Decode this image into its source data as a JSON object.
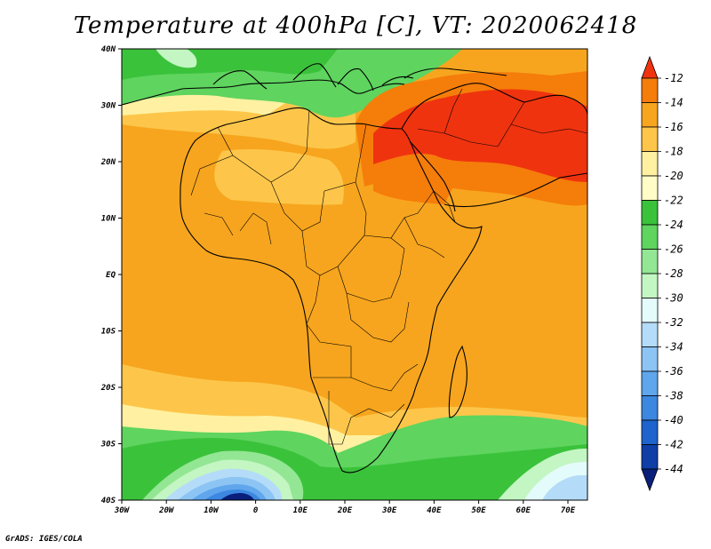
{
  "title": "Temperature at 400hPa [C], VT: 2020062418",
  "footer": "GrADS: IGES/COLA",
  "map": {
    "lat_labels": [
      "40N",
      "30N",
      "20N",
      "10N",
      "EQ",
      "10S",
      "20S",
      "30S",
      "40S"
    ],
    "lon_labels": [
      "30W",
      "20W",
      "10W",
      "0",
      "10E",
      "20E",
      "30E",
      "40E",
      "50E",
      "60E",
      "70E"
    ]
  },
  "colorbar": {
    "levels": [
      "-12",
      "-14",
      "-16",
      "-18",
      "-20",
      "-22",
      "-24",
      "-26",
      "-28",
      "-30",
      "-32",
      "-34",
      "-36",
      "-38",
      "-40",
      "-42",
      "-44"
    ],
    "colors": [
      "#f0330f",
      "#f57d0a",
      "#f7a51e",
      "#fdc64a",
      "#fff1a1",
      "#fffcc7",
      "#3bc23b",
      "#5fd45f",
      "#93e693",
      "#c3f6c3",
      "#e4fbfb",
      "#b4dcf8",
      "#8cc4f4",
      "#5fa6ec",
      "#3c87e0",
      "#1f63cc",
      "#0f3fa6",
      "#0a1f7a"
    ]
  }
}
